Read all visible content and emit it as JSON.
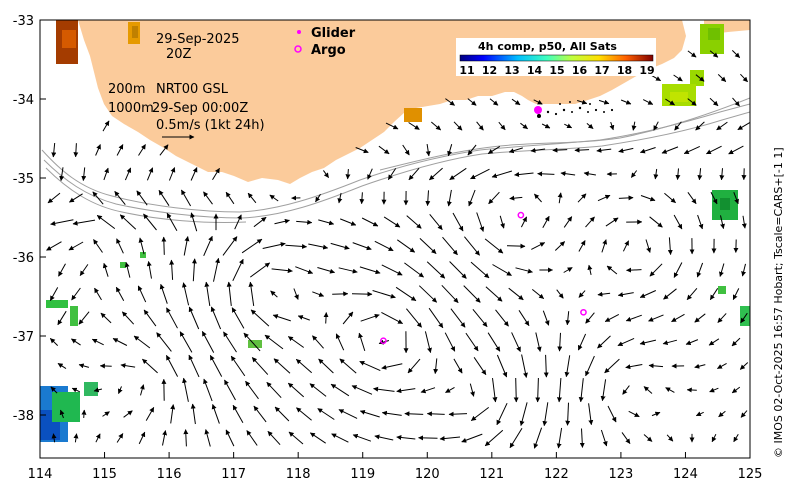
{
  "map": {
    "date": "29-Sep-2025",
    "hour": "20Z",
    "depth_200": "200m",
    "depth_1000": "1000m",
    "source": "NRT00 GSL",
    "vector_time": "29-Sep 00:00Z",
    "scale_label": "0.5m/s (1kt 24h)",
    "legend": {
      "glider": "Glider",
      "argo": "Argo"
    },
    "colorbar": {
      "title": "4h comp, p50, All Sats",
      "ticks": [
        "11",
        "12",
        "13",
        "14",
        "15",
        "16",
        "17",
        "18",
        "19"
      ]
    },
    "side_caption": "© IMOS 02-Oct-2025 16:57 Hobart; Tscale=CARS+[-1 1]",
    "x_ticks": [
      "114",
      "115",
      "116",
      "117",
      "118",
      "119",
      "120",
      "121",
      "122",
      "123",
      "124",
      "125"
    ],
    "y_ticks": [
      "-33",
      "-34",
      "-35",
      "-36",
      "-37",
      "-38"
    ],
    "land_color": "#fbcb9b",
    "argo_floats": [
      {
        "lon": 121.45,
        "lat": -35.47
      },
      {
        "lon": 119.32,
        "lat": -37.06
      },
      {
        "lon": 122.42,
        "lat": -36.7
      }
    ],
    "glider": {
      "lon": 121.72,
      "lat": -34.12
    }
  }
}
